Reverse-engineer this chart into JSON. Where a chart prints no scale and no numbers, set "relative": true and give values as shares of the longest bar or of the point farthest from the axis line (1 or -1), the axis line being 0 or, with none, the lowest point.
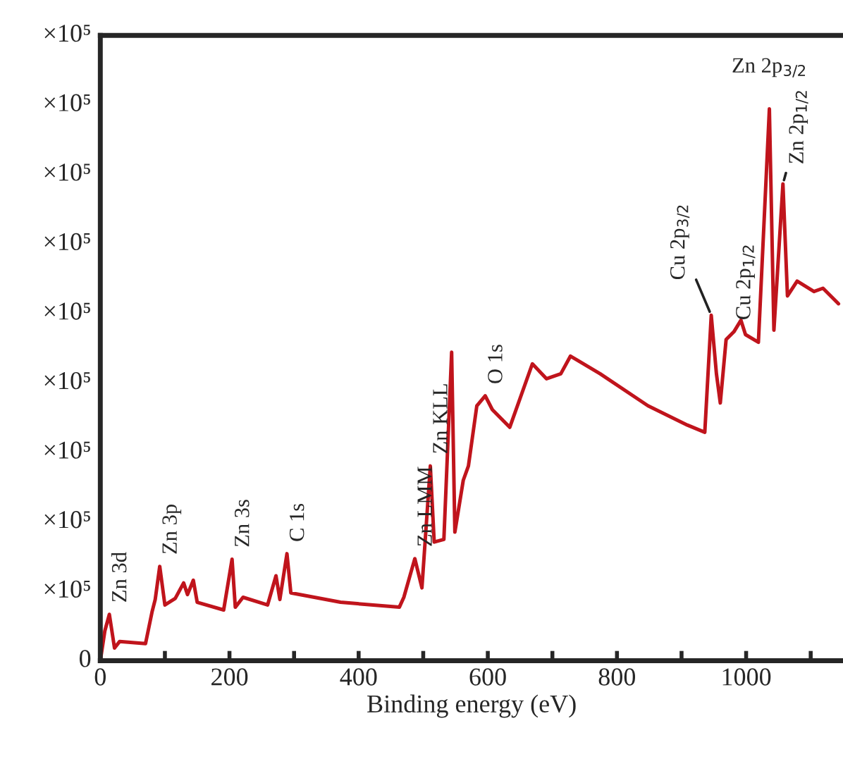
{
  "chart_data": {
    "type": "line",
    "xlabel": "Binding energy (eV)",
    "relative": true,
    "x": [
      0,
      7,
      14,
      22,
      30,
      70,
      80,
      85,
      92,
      100,
      116,
      129,
      135,
      144,
      150,
      191,
      204,
      209,
      221,
      259,
      272,
      278,
      289,
      295,
      372,
      463,
      470,
      487,
      498,
      511,
      517,
      532,
      544,
      549,
      562,
      570,
      583,
      596,
      607,
      634,
      669,
      691,
      713,
      728,
      774,
      848,
      909,
      936,
      946,
      954,
      960,
      969,
      981,
      992,
      999,
      1019,
      1036,
      1043,
      1057,
      1064,
      1079,
      1105,
      1119,
      1143
    ],
    "series": [
      {
        "color": "#c0141c",
        "values": [
          0,
          0.054,
          0.084,
          0.023,
          0.035,
          0.031,
          0.088,
          0.111,
          0.171,
          0.101,
          0.113,
          0.141,
          0.12,
          0.146,
          0.106,
          0.092,
          0.184,
          0.097,
          0.115,
          0.101,
          0.154,
          0.111,
          0.194,
          0.123,
          0.106,
          0.097,
          0.115,
          0.185,
          0.132,
          0.353,
          0.215,
          0.22,
          0.559,
          0.233,
          0.327,
          0.353,
          0.462,
          0.48,
          0.455,
          0.423,
          0.538,
          0.511,
          0.52,
          0.552,
          0.52,
          0.462,
          0.427,
          0.414,
          0.626,
          0.52,
          0.467,
          0.582,
          0.596,
          0.617,
          0.591,
          0.577,
          1,
          0.599,
          0.864,
          0.661,
          0.688,
          0.669,
          0.675,
          0.647
        ]
      }
    ],
    "xlim": [
      0,
      1150
    ],
    "xticks": [
      0,
      {
        "value": 100,
        "label": null
      },
      200,
      {
        "value": 300,
        "label": null
      },
      400,
      {
        "value": 500,
        "label": null
      },
      600,
      {
        "value": 700,
        "label": null
      },
      800,
      {
        "value": 900,
        "label": null
      },
      1000,
      {
        "value": 1100,
        "label": null
      }
    ],
    "grid": false,
    "legend": false,
    "annotations": [
      {
        "text": "Zn 3d",
        "x": 14,
        "y": 0.084
      },
      {
        "text": "Zn 3p",
        "x": 92,
        "y": 0.171
      },
      {
        "text": "Zn 3s",
        "x": 204,
        "y": 0.184
      },
      {
        "text": "C 1s",
        "x": 289,
        "y": 0.194
      },
      {
        "text": "Zn LMM",
        "x": 487,
        "y": 0.185
      },
      {
        "text": "Zn KLL",
        "x": 511,
        "y": 0.353
      },
      {
        "text": "O 1s",
        "x": 596,
        "y": 0.48
      },
      {
        "text": "Cu 2p$_{3/2}$",
        "x": 946,
        "y": 0.626
      },
      {
        "text": "Cu 2p$_{1/2}$",
        "x": 981,
        "y": 0.596
      },
      {
        "text": "Zn 2p$_{3/2}$",
        "x": 1036,
        "y": 1
      },
      {
        "text": "Zn 2p$_{1/2}$",
        "x": 1057,
        "y": 0.864
      },
      "0",
      "×10⁵",
      "×10⁵",
      "×10⁵",
      "×10⁵",
      "×10⁵",
      "×10⁵",
      "×10⁵",
      "×10⁵",
      "×10⁵"
    ]
  }
}
